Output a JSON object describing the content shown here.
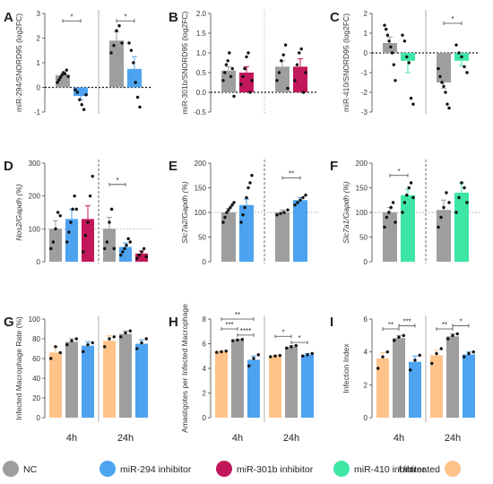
{
  "figure": {
    "legend": [
      {
        "label": "NC",
        "color": "#9e9e9e"
      },
      {
        "label": "miR-294 inhibitor",
        "color": "#4da3f0"
      },
      {
        "label": "miR-301b inhibitor",
        "color": "#c2185b"
      },
      {
        "label": "miR-410 inhibitor",
        "color": "#3ee6a6"
      },
      {
        "label": "Untreated",
        "color": "#ffc38a"
      }
    ]
  },
  "chart_data": [
    {
      "panel": "A",
      "type": "bar",
      "ylabel": "miR-294/SNORD95 (log2FC)",
      "ylim": [
        -1,
        3
      ],
      "yticks": [
        "-1",
        "0",
        "1",
        "2",
        "3"
      ],
      "ref_line": 0,
      "groups": [
        {
          "bars": [
            {
              "series": "NC",
              "value": 0.5,
              "err": 0.1,
              "points": [
                0.2,
                0.3,
                0.4,
                0.5,
                0.6,
                0.55,
                0.7,
                0.45
              ]
            },
            {
              "series": "miR-294 inhibitor",
              "value": -0.35,
              "err": 0.15,
              "points": [
                -0.1,
                -0.2,
                -0.5,
                -0.7,
                -0.9,
                -0.3
              ]
            }
          ]
        },
        {
          "bars": [
            {
              "series": "NC",
              "value": 1.9,
              "err": 0.35,
              "points": [
                1.4,
                1.7,
                2.3,
                2.5,
                1.8
              ]
            },
            {
              "series": "miR-294 inhibitor",
              "value": 0.75,
              "err": 0.5,
              "points": [
                1.8,
                1.5,
                1.0,
                0.2,
                -0.4,
                -0.8
              ]
            }
          ]
        }
      ],
      "annotations": [
        {
          "text": "*",
          "group": 0,
          "from": 0,
          "to": 1,
          "y": 2.7
        },
        {
          "text": "*",
          "group": 1,
          "from": 0,
          "to": 1,
          "y": 2.7
        }
      ]
    },
    {
      "panel": "B",
      "type": "bar",
      "ylabel": "miR-301b/SNORD95 (log2FC)",
      "ylim": [
        -0.5,
        2.0
      ],
      "yticks": [
        "-0.5",
        "0.0",
        "0.5",
        "1.0",
        "1.5",
        "2.0"
      ],
      "ref_line": 0,
      "groups": [
        {
          "bars": [
            {
              "series": "NC",
              "value": 0.55,
              "err": 0.1,
              "points": [
                0.3,
                0.5,
                0.7,
                0.8,
                1.0,
                0.4,
                0.6,
                -0.1
              ]
            },
            {
              "series": "miR-301b inhibitor",
              "value": 0.5,
              "err": 0.15,
              "points": [
                0.2,
                0.4,
                0.6,
                0.9,
                1.0,
                0.0,
                0.3
              ]
            }
          ]
        },
        {
          "bars": [
            {
              "series": "NC",
              "value": 0.65,
              "err": 0.15,
              "points": [
                0.3,
                0.5,
                0.8,
                0.95,
                1.2,
                0.1
              ]
            },
            {
              "series": "miR-301b inhibitor",
              "value": 0.65,
              "err": 0.2,
              "points": [
                0.3,
                0.7,
                1.0,
                1.1,
                0.0,
                0.5
              ]
            }
          ]
        }
      ],
      "annotations": []
    },
    {
      "panel": "C",
      "type": "bar",
      "ylabel": "miR-410/SNORD95 (log2FC)",
      "ylim": [
        -3,
        2
      ],
      "yticks": [
        "-3",
        "-2",
        "-1",
        "0",
        "1",
        "2"
      ],
      "ref_line": 0,
      "groups": [
        {
          "bars": [
            {
              "series": "NC",
              "value": 0.5,
              "err": 0.3,
              "points": [
                1.4,
                1.2,
                0.9,
                0.6,
                0.3,
                0.0,
                -0.6,
                -1.4
              ]
            },
            {
              "series": "miR-410 inhibitor",
              "value": -0.4,
              "err": 0.6,
              "points": [
                0.9,
                0.6,
                -0.2,
                -0.5,
                -2.3,
                -2.6
              ]
            }
          ]
        },
        {
          "bars": [
            {
              "series": "NC",
              "value": -1.5,
              "err": 0.3,
              "points": [
                -0.8,
                -1.2,
                -1.5,
                -1.7,
                -2.0,
                -2.6,
                -2.8
              ]
            },
            {
              "series": "miR-410 inhibitor",
              "value": -0.4,
              "err": 0.25,
              "points": [
                0.4,
                0.0,
                -0.2,
                -0.7,
                -1.0
              ]
            }
          ]
        }
      ],
      "annotations": [
        {
          "text": "*",
          "group": 1,
          "from": 0,
          "to": 1,
          "y": 1.5
        }
      ]
    },
    {
      "panel": "D",
      "type": "bar",
      "ylabel": "Nos2/Gapdh (%)",
      "ylim": [
        0,
        300
      ],
      "yticks": [
        "0",
        "100",
        "200",
        "300"
      ],
      "ref_line": 100,
      "groups": [
        {
          "bars": [
            {
              "series": "NC",
              "value": 100,
              "err": 25,
              "points": [
                40,
                60,
                100,
                150,
                140
              ]
            },
            {
              "series": "miR-294 inhibitor",
              "value": 130,
              "err": 30,
              "points": [
                60,
                90,
                120,
                160,
                200,
                160
              ]
            },
            {
              "series": "miR-301b inhibitor",
              "value": 130,
              "err": 40,
              "points": [
                30,
                80,
                120,
                200,
                260
              ]
            }
          ]
        },
        {
          "bars": [
            {
              "series": "NC",
              "value": 100,
              "err": 35,
              "points": [
                40,
                60,
                120,
                160,
                40
              ]
            },
            {
              "series": "miR-294 inhibitor",
              "value": 45,
              "err": 12,
              "points": [
                20,
                30,
                40,
                50,
                70,
                60
              ]
            },
            {
              "series": "miR-301b inhibitor",
              "value": 25,
              "err": 8,
              "points": [
                10,
                20,
                30,
                40,
                15
              ]
            }
          ]
        }
      ],
      "annotations": [
        {
          "text": "*",
          "group": 1,
          "from": 0,
          "to": 1,
          "y": 235
        }
      ]
    },
    {
      "panel": "E",
      "type": "bar",
      "ylabel": "Slc7a2/Gapdh (%)",
      "ylim": [
        0,
        200
      ],
      "yticks": [
        "0",
        "50",
        "100",
        "150",
        "200"
      ],
      "ref_line": 100,
      "groups": [
        {
          "bars": [
            {
              "series": "NC",
              "value": 100,
              "err": 8,
              "points": [
                80,
                90,
                100,
                105,
                110,
                115,
                120
              ]
            },
            {
              "series": "miR-294 inhibitor",
              "value": 115,
              "err": 12,
              "points": [
                80,
                95,
                110,
                130,
                150,
                160,
                175
              ]
            }
          ]
        },
        {
          "bars": [
            {
              "series": "NC",
              "value": 100,
              "err": 5,
              "points": [
                95,
                98,
                100,
                105
              ]
            },
            {
              "series": "miR-294 inhibitor",
              "value": 125,
              "err": 5,
              "points": [
                115,
                120,
                125,
                130,
                135
              ]
            }
          ]
        }
      ],
      "annotations": [
        {
          "text": "**",
          "group": 1,
          "from": 0,
          "to": 1,
          "y": 170
        }
      ]
    },
    {
      "panel": "F",
      "type": "bar",
      "ylabel": "Slc7a1/Gapdh (%)",
      "ylim": [
        0,
        200
      ],
      "yticks": [
        "0",
        "50",
        "100",
        "150",
        "200"
      ],
      "ref_line": 100,
      "groups": [
        {
          "bars": [
            {
              "series": "NC",
              "value": 100,
              "err": 10,
              "points": [
                70,
                90,
                100,
                110,
                120,
                80
              ]
            },
            {
              "series": "miR-410 inhibitor",
              "value": 135,
              "err": 12,
              "points": [
                100,
                120,
                135,
                150,
                160,
                130
              ]
            }
          ]
        },
        {
          "bars": [
            {
              "series": "NC",
              "value": 105,
              "err": 20,
              "points": [
                70,
                90,
                110,
                140,
                120
              ]
            },
            {
              "series": "miR-410 inhibitor",
              "value": 140,
              "err": 20,
              "points": [
                100,
                130,
                160,
                150,
                120
              ]
            }
          ]
        }
      ],
      "annotations": [
        {
          "text": "*",
          "group": 0,
          "from": 0,
          "to": 1,
          "y": 175
        }
      ]
    },
    {
      "panel": "G",
      "type": "bar",
      "ylabel": "Infected Macrophage Rate (%)",
      "ylim": [
        0,
        100
      ],
      "yticks": [
        "0",
        "20",
        "40",
        "60",
        "80",
        "100"
      ],
      "categories": [
        "4h",
        "24h"
      ],
      "groups": [
        {
          "bars": [
            {
              "series": "Untreated",
              "value": 66,
              "err": 6,
              "points": [
                60,
                72,
                66
              ]
            },
            {
              "series": "NC",
              "value": 77,
              "err": 3,
              "points": [
                74,
                78,
                80
              ]
            },
            {
              "series": "miR-294 inhibitor",
              "value": 73,
              "err": 4,
              "points": [
                67,
                74,
                76
              ]
            }
          ]
        },
        {
          "bars": [
            {
              "series": "Untreated",
              "value": 78,
              "err": 5,
              "points": [
                72,
                80,
                82
              ]
            },
            {
              "series": "NC",
              "value": 85,
              "err": 3,
              "points": [
                82,
                86,
                88
              ]
            },
            {
              "series": "miR-294 inhibitor",
              "value": 75,
              "err": 4,
              "points": [
                70,
                76,
                80
              ]
            }
          ]
        }
      ],
      "annotations": []
    },
    {
      "panel": "H",
      "type": "bar",
      "ylabel": "Amastigotes per Infected Macrophage",
      "ylim": [
        0,
        8
      ],
      "yticks": [
        "0",
        "2",
        "4",
        "6",
        "8"
      ],
      "categories": [
        "4h",
        "24h"
      ],
      "groups": [
        {
          "bars": [
            {
              "series": "Untreated",
              "value": 5.35,
              "err": 0.05,
              "points": [
                5.3,
                5.35,
                5.4
              ]
            },
            {
              "series": "NC",
              "value": 6.3,
              "err": 0.05,
              "points": [
                6.25,
                6.3,
                6.35
              ]
            },
            {
              "series": "miR-294 inhibitor",
              "value": 4.7,
              "err": 0.3,
              "points": [
                4.2,
                4.8,
                5.1
              ]
            }
          ]
        },
        {
          "bars": [
            {
              "series": "Untreated",
              "value": 5.0,
              "err": 0.05,
              "points": [
                4.95,
                5.0,
                5.05
              ]
            },
            {
              "series": "NC",
              "value": 5.75,
              "err": 0.1,
              "points": [
                5.65,
                5.75,
                5.85
              ]
            },
            {
              "series": "miR-294 inhibitor",
              "value": 5.1,
              "err": 0.1,
              "points": [
                5.0,
                5.1,
                5.2
              ]
            }
          ]
        }
      ],
      "annotations": [
        {
          "text": "***",
          "group": 0,
          "from": 0,
          "to": 1,
          "y": 7.2
        },
        {
          "text": "**",
          "group": 0,
          "from": 0,
          "to": 2,
          "y": 8.0
        },
        {
          "text": "****",
          "group": 0,
          "from": 1,
          "to": 2,
          "y": 6.7
        },
        {
          "text": "*",
          "group": 1,
          "from": 0,
          "to": 1,
          "y": 6.6
        },
        {
          "text": "*",
          "group": 1,
          "from": 1,
          "to": 2,
          "y": 6.1
        }
      ]
    },
    {
      "panel": "I",
      "type": "bar",
      "ylabel": "Infection Index",
      "ylim": [
        0,
        6
      ],
      "yticks": [
        "0",
        "2",
        "4",
        "6"
      ],
      "categories": [
        "4h",
        "24h"
      ],
      "groups": [
        {
          "bars": [
            {
              "series": "Untreated",
              "value": 3.6,
              "err": 0.35,
              "points": [
                3.0,
                3.7,
                4.0
              ]
            },
            {
              "series": "NC",
              "value": 4.85,
              "err": 0.15,
              "points": [
                4.7,
                4.9,
                5.0
              ]
            },
            {
              "series": "miR-294 inhibitor",
              "value": 3.4,
              "err": 0.35,
              "points": [
                2.9,
                3.5,
                3.8
              ]
            }
          ]
        },
        {
          "bars": [
            {
              "series": "Untreated",
              "value": 3.8,
              "err": 0.3,
              "points": [
                3.3,
                3.9,
                4.2
              ]
            },
            {
              "series": "NC",
              "value": 4.95,
              "err": 0.15,
              "points": [
                4.8,
                5.0,
                5.1
              ]
            },
            {
              "series": "miR-294 inhibitor",
              "value": 3.85,
              "err": 0.15,
              "points": [
                3.7,
                3.9,
                4.0
              ]
            }
          ]
        }
      ],
      "annotations": [
        {
          "text": "**",
          "group": 0,
          "from": 0,
          "to": 1,
          "y": 5.4
        },
        {
          "text": "***",
          "group": 0,
          "from": 1,
          "to": 2,
          "y": 5.6
        },
        {
          "text": "**",
          "group": 1,
          "from": 0,
          "to": 1,
          "y": 5.4
        },
        {
          "text": "*",
          "group": 1,
          "from": 1,
          "to": 2,
          "y": 5.6
        }
      ]
    }
  ]
}
